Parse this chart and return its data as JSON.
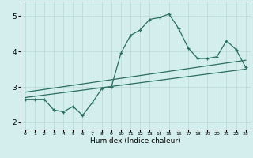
{
  "title": "",
  "xlabel": "Humidex (Indice chaleur)",
  "ylabel": "",
  "bg_color": "#d4eeee",
  "line_color": "#2a6e60",
  "grid_color": "#b8d8d8",
  "xlim": [
    -0.5,
    23.5
  ],
  "ylim": [
    1.8,
    5.4
  ],
  "xticks": [
    0,
    1,
    2,
    3,
    4,
    5,
    6,
    7,
    8,
    9,
    10,
    11,
    12,
    13,
    14,
    15,
    16,
    17,
    18,
    19,
    20,
    21,
    22,
    23
  ],
  "yticks": [
    2,
    3,
    4,
    5
  ],
  "main_x": [
    0,
    1,
    2,
    3,
    4,
    5,
    6,
    7,
    8,
    9,
    10,
    11,
    12,
    13,
    14,
    15,
    16,
    17,
    18,
    19,
    20,
    21,
    22,
    23
  ],
  "main_y": [
    2.65,
    2.65,
    2.65,
    2.35,
    2.3,
    2.45,
    2.2,
    2.55,
    2.95,
    3.0,
    3.95,
    4.45,
    4.6,
    4.9,
    4.95,
    5.05,
    4.65,
    4.1,
    3.8,
    3.8,
    3.85,
    4.3,
    4.05,
    3.55
  ],
  "trend1_x": [
    0,
    23
  ],
  "trend1_y": [
    2.7,
    3.5
  ],
  "trend2_x": [
    0,
    23
  ],
  "trend2_y": [
    2.85,
    3.75
  ]
}
